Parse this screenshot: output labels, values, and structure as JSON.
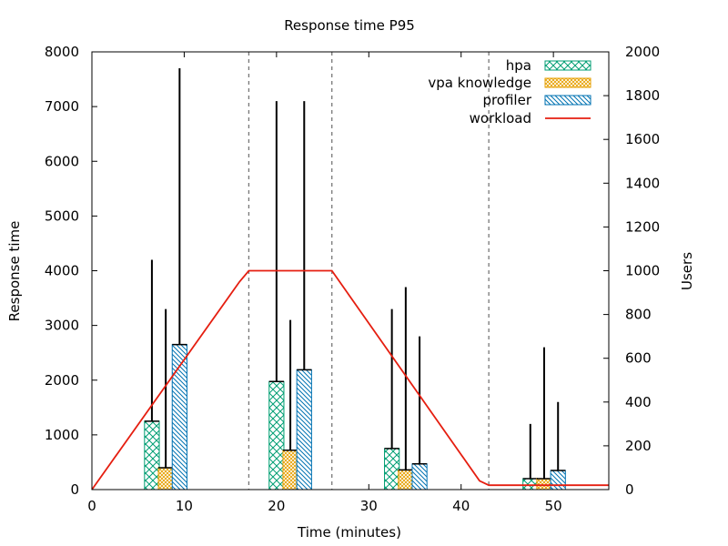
{
  "chart_data": {
    "type": "bar",
    "title": "Response time P95",
    "xlabel": "Time (minutes)",
    "ylabel": "Response time",
    "y2label": "Users",
    "xlim": [
      0,
      56
    ],
    "ylim": [
      0,
      8000
    ],
    "y2lim": [
      0,
      2000
    ],
    "xticks": [
      0,
      10,
      20,
      30,
      40,
      50
    ],
    "yticks": [
      0,
      1000,
      2000,
      3000,
      4000,
      5000,
      6000,
      7000,
      8000
    ],
    "y2ticks": [
      0,
      200,
      400,
      600,
      800,
      1000,
      1200,
      1400,
      1600,
      1800,
      2000
    ],
    "legend_position": "top-right",
    "vlines": [
      17,
      26,
      43
    ],
    "series": [
      {
        "name": "hpa",
        "color": "#009e73",
        "pattern": "crosshatch",
        "x": [
          6.5,
          20.0,
          32.5,
          47.5
        ],
        "values": [
          1250,
          1975,
          750,
          200
        ],
        "error_high": [
          4200,
          7100,
          3300,
          1200
        ]
      },
      {
        "name": "vpa knowledge",
        "color": "#e69f00",
        "pattern": "crosshatch-fine",
        "x": [
          8.0,
          21.5,
          34.0,
          49.0
        ],
        "values": [
          400,
          720,
          360,
          200
        ],
        "error_high": [
          3300,
          3100,
          3700,
          2600
        ]
      },
      {
        "name": "profiler",
        "color": "#0072b2",
        "pattern": "diagonal",
        "x": [
          9.5,
          23.0,
          35.5,
          50.5
        ],
        "values": [
          2650,
          2190,
          470,
          350
        ],
        "error_high": [
          7700,
          7100,
          2800,
          1600
        ]
      }
    ],
    "workload": {
      "name": "workload",
      "color": "#e51e10",
      "axis": "y2",
      "x": [
        0,
        16,
        17,
        26,
        42,
        43,
        56
      ],
      "y": [
        0,
        950,
        1000,
        1000,
        40,
        20,
        20
      ]
    }
  }
}
